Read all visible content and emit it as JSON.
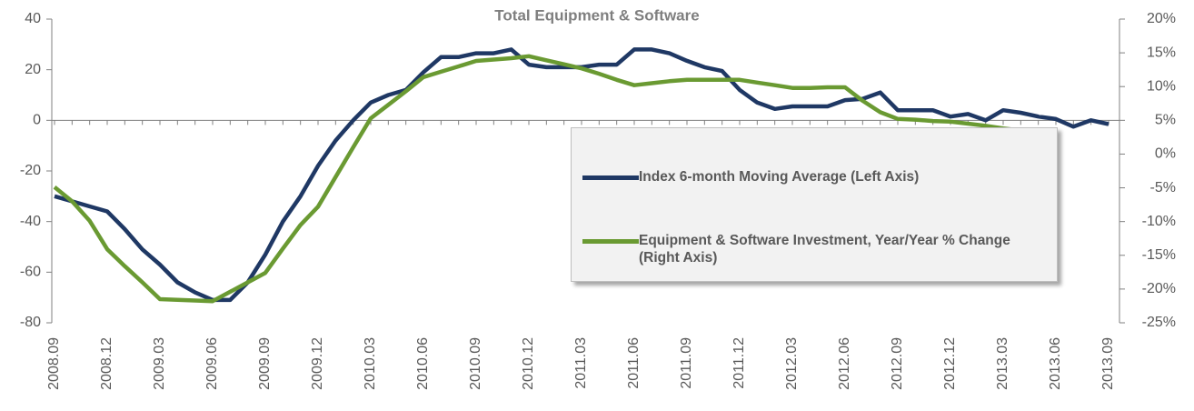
{
  "chart_data": {
    "type": "line",
    "title": "Total Equipment & Software",
    "categories": [
      "2008.09",
      null,
      null,
      "2008.12",
      null,
      null,
      "2009.03",
      null,
      null,
      "2009.06",
      null,
      null,
      "2009.09",
      null,
      null,
      "2009.12",
      null,
      null,
      "2010.03",
      null,
      null,
      "2010.06",
      null,
      null,
      "2010.09",
      null,
      null,
      "2010.12",
      null,
      null,
      "2011.03",
      null,
      null,
      "2011.06",
      null,
      null,
      "2011.09",
      null,
      null,
      "2011.12",
      null,
      null,
      "2012.03",
      null,
      null,
      "2012.06",
      null,
      null,
      "2012.09",
      null,
      null,
      "2012.12",
      null,
      null,
      "2013.03",
      null,
      null,
      "2013.06",
      null,
      null,
      "2013.09"
    ],
    "series": [
      {
        "name": "Index 6-month Moving Average (Left Axis)",
        "color": "#1f3864",
        "values": [
          -30,
          -32,
          -34,
          -36,
          -43,
          -51,
          -57,
          -64,
          -68,
          -71,
          -71,
          -64,
          -53,
          -40,
          -30,
          -18,
          -8,
          0,
          7,
          10,
          12,
          19,
          25,
          25,
          26.5,
          26.5,
          28,
          22,
          21,
          21,
          21,
          22,
          22,
          28,
          28,
          26.5,
          23.5,
          21,
          19.5,
          12,
          7,
          4.5,
          5.5,
          5.5,
          5.5,
          8,
          8.5,
          11,
          4,
          4,
          4,
          1.5,
          2.5,
          0,
          4,
          3,
          1.5,
          0.5,
          -2.5,
          0,
          -1.5
        ]
      },
      {
        "name": "Equipment & Software Investment, Year/Year % Change (Right Axis)",
        "color": "#6a9a32",
        "axis": "y2",
        "values": [
          -4.9,
          -7,
          -9.9,
          -14.1,
          -16.6,
          -19,
          -21.5,
          -21.6,
          -21.7,
          -21.8,
          -20.4,
          -19,
          -17.6,
          -14,
          -10.5,
          -7.8,
          -3.4,
          1,
          5.3,
          7.3,
          9.3,
          11.4,
          12.2,
          13,
          13.8,
          14,
          14.2,
          14.5,
          13.9,
          13.3,
          12.7,
          11.9,
          11,
          10.2,
          10.5,
          10.8,
          11,
          11,
          11,
          11,
          10.6,
          10.2,
          9.8,
          9.8,
          9.9,
          9.9,
          7.9,
          6.2,
          5.2,
          5.1,
          4.9,
          4.8,
          4.5,
          4.2,
          3.8,
          3.5,
          3.2,
          2.9,
          null,
          null,
          null
        ]
      }
    ],
    "ylim": [
      -80,
      40
    ],
    "yticks": [
      -80,
      -60,
      -40,
      -20,
      0,
      20,
      40
    ],
    "y2lim": [
      -25,
      20
    ],
    "y2ticks": [
      {
        "value": -25,
        "label": "-25%"
      },
      {
        "value": -20,
        "label": "-20%"
      },
      {
        "value": -15,
        "label": "-15%"
      },
      {
        "value": -10,
        "label": "-10%"
      },
      {
        "value": -5,
        "label": "-5%"
      },
      {
        "value": 0,
        "label": "0%"
      },
      {
        "value": 5,
        "label": "5%"
      },
      {
        "value": 10,
        "label": "10%"
      },
      {
        "value": 15,
        "label": "15%"
      },
      {
        "value": 20,
        "label": "20%"
      }
    ]
  }
}
